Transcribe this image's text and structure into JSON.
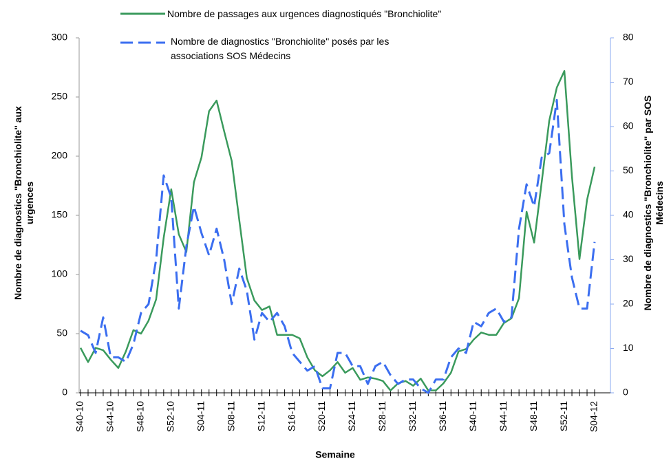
{
  "chart_data": {
    "type": "line",
    "categories": [
      "S40-10",
      null,
      null,
      null,
      "S44-10",
      null,
      null,
      null,
      "S48-10",
      null,
      null,
      null,
      "S52-10",
      null,
      null,
      null,
      "S04-11",
      null,
      null,
      null,
      "S08-11",
      null,
      null,
      null,
      "S12-11",
      null,
      null,
      null,
      "S16-11",
      null,
      null,
      null,
      "S20-11",
      null,
      null,
      null,
      "S24-11",
      null,
      null,
      null,
      "S28-11",
      null,
      null,
      null,
      "S32-11",
      null,
      null,
      null,
      "S36-11",
      null,
      null,
      null,
      "S40-11",
      null,
      null,
      null,
      "S44-11",
      null,
      null,
      null,
      "S48-11",
      null,
      null,
      null,
      "S52-11",
      null,
      null,
      null,
      "S04-12"
    ],
    "series": [
      {
        "name": "Nombre de passages aux urgences diagnostiqués \"Bronchiolite\"",
        "color": "#3a9a5c",
        "axis": "y",
        "values": [
          38,
          26,
          38,
          36,
          28,
          21,
          35,
          53,
          50,
          61,
          79,
          131,
          172,
          134,
          119,
          178,
          199,
          238,
          247,
          221,
          196,
          146,
          97,
          78,
          70,
          73,
          49,
          49,
          49,
          46,
          30,
          19,
          14,
          19,
          26,
          17,
          21,
          11,
          13,
          12,
          10,
          2,
          8,
          10,
          6,
          12,
          2,
          2,
          8,
          17,
          35,
          37,
          45,
          51,
          49,
          49,
          59,
          63,
          80,
          153,
          127,
          178,
          230,
          258,
          272,
          183,
          113,
          163,
          191
        ]
      },
      {
        "name": "Nombre de diagnostics \"Bronchiolite\" posés par les associations SOS Médecins",
        "color": "#3b6ef0",
        "axis": "y2",
        "dashed": true,
        "values": [
          14,
          13,
          9,
          17,
          8,
          8,
          7,
          11,
          18,
          20,
          30,
          49,
          44,
          19,
          33,
          42,
          36,
          31,
          37,
          30,
          20,
          28,
          23,
          12,
          18,
          16,
          18,
          15,
          9,
          7,
          5,
          6,
          1,
          1,
          9,
          9,
          6,
          6,
          2,
          6,
          7,
          4,
          2,
          3,
          3,
          1,
          0,
          3,
          3,
          8,
          10,
          9,
          16,
          15,
          18,
          19,
          16,
          17,
          37,
          47,
          42,
          53,
          54,
          66,
          38,
          26,
          19,
          19,
          34
        ]
      }
    ],
    "xlabel": "Semaine",
    "ylabel": "Nombre de diagnostics \"Bronchiolite\" aux urgences",
    "y2label": "Nombre de diagnostics \"Bronchiolite\" par SOS Médecins",
    "ylim": [
      0,
      300
    ],
    "yticks": [
      0,
      50,
      100,
      150,
      200,
      250,
      300
    ],
    "y2lim": [
      0,
      80
    ],
    "y2ticks": [
      0,
      10,
      20,
      30,
      40,
      50,
      60,
      70,
      80
    ]
  }
}
